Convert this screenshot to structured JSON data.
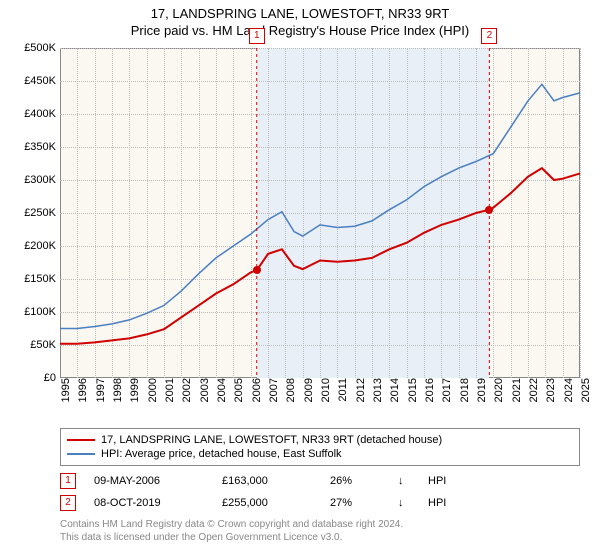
{
  "title_line1": "17, LANDSPRING LANE, LOWESTOFT, NR33 9RT",
  "title_line2": "Price paid vs. HM Land Registry's House Price Index (HPI)",
  "chart": {
    "type": "line",
    "background_color": "#fbf8f1",
    "shade_color": "#e8eff7",
    "grid_color": "#bbbbbb",
    "border_color": "#888888",
    "xlim": [
      1995,
      2025
    ],
    "ylim": [
      0,
      500000
    ],
    "ytick_step": 50000,
    "yticks": [
      "£0",
      "£50K",
      "£100K",
      "£150K",
      "£200K",
      "£250K",
      "£300K",
      "£350K",
      "£400K",
      "£450K",
      "£500K"
    ],
    "xticks": [
      "1995",
      "1996",
      "1997",
      "1998",
      "1999",
      "2000",
      "2001",
      "2002",
      "2003",
      "2004",
      "2005",
      "2006",
      "2007",
      "2008",
      "2009",
      "2010",
      "2011",
      "2012",
      "2013",
      "2014",
      "2015",
      "2016",
      "2017",
      "2018",
      "2019",
      "2020",
      "2021",
      "2022",
      "2023",
      "2024",
      "2025"
    ],
    "shade_start": 2006.35,
    "shade_end": 2019.77,
    "series": [
      {
        "name": "property",
        "color": "#d10000",
        "width": 2,
        "data": [
          [
            1995,
            52000
          ],
          [
            1996,
            52000
          ],
          [
            1997,
            54000
          ],
          [
            1998,
            57000
          ],
          [
            1999,
            60000
          ],
          [
            2000,
            66000
          ],
          [
            2001,
            74000
          ],
          [
            2002,
            92000
          ],
          [
            2003,
            110000
          ],
          [
            2004,
            128000
          ],
          [
            2005,
            142000
          ],
          [
            2006,
            160000
          ],
          [
            2006.35,
            163000
          ],
          [
            2007,
            188000
          ],
          [
            2007.8,
            195000
          ],
          [
            2008.5,
            170000
          ],
          [
            2009,
            165000
          ],
          [
            2010,
            178000
          ],
          [
            2011,
            176000
          ],
          [
            2012,
            178000
          ],
          [
            2013,
            182000
          ],
          [
            2014,
            195000
          ],
          [
            2015,
            205000
          ],
          [
            2016,
            220000
          ],
          [
            2017,
            232000
          ],
          [
            2018,
            240000
          ],
          [
            2019,
            250000
          ],
          [
            2019.77,
            255000
          ],
          [
            2020,
            258000
          ],
          [
            2021,
            280000
          ],
          [
            2022,
            305000
          ],
          [
            2022.8,
            318000
          ],
          [
            2023.5,
            300000
          ],
          [
            2024,
            302000
          ],
          [
            2025,
            310000
          ]
        ]
      },
      {
        "name": "hpi",
        "color": "#4a7fc1",
        "width": 1.5,
        "data": [
          [
            1995,
            75000
          ],
          [
            1996,
            75000
          ],
          [
            1997,
            78000
          ],
          [
            1998,
            82000
          ],
          [
            1999,
            88000
          ],
          [
            2000,
            98000
          ],
          [
            2001,
            110000
          ],
          [
            2002,
            132000
          ],
          [
            2003,
            158000
          ],
          [
            2004,
            182000
          ],
          [
            2005,
            200000
          ],
          [
            2006,
            218000
          ],
          [
            2007,
            240000
          ],
          [
            2007.8,
            252000
          ],
          [
            2008.5,
            222000
          ],
          [
            2009,
            215000
          ],
          [
            2010,
            232000
          ],
          [
            2011,
            228000
          ],
          [
            2012,
            230000
          ],
          [
            2013,
            238000
          ],
          [
            2014,
            255000
          ],
          [
            2015,
            270000
          ],
          [
            2016,
            290000
          ],
          [
            2017,
            305000
          ],
          [
            2018,
            318000
          ],
          [
            2019,
            328000
          ],
          [
            2020,
            340000
          ],
          [
            2021,
            380000
          ],
          [
            2022,
            420000
          ],
          [
            2022.8,
            445000
          ],
          [
            2023.5,
            420000
          ],
          [
            2024,
            425000
          ],
          [
            2025,
            432000
          ]
        ]
      }
    ],
    "sale_markers": [
      {
        "n": "1",
        "year": 2006.35,
        "value": 163000,
        "color": "#d10000"
      },
      {
        "n": "2",
        "year": 2019.77,
        "value": 255000,
        "color": "#d10000"
      }
    ]
  },
  "legend": {
    "items": [
      {
        "color": "#d10000",
        "label": "17, LANDSPRING LANE, LOWESTOFT, NR33 9RT (detached house)"
      },
      {
        "color": "#4a7fc1",
        "label": "HPI: Average price, detached house, East Suffolk"
      }
    ]
  },
  "sales": [
    {
      "n": "1",
      "color": "#d10000",
      "date": "09-MAY-2006",
      "price": "£163,000",
      "pct": "26%",
      "arrow": "↓",
      "vs": "HPI"
    },
    {
      "n": "2",
      "color": "#d10000",
      "date": "08-OCT-2019",
      "price": "£255,000",
      "pct": "27%",
      "arrow": "↓",
      "vs": "HPI"
    }
  ],
  "attribution_line1": "Contains HM Land Registry data © Crown copyright and database right 2024.",
  "attribution_line2": "This data is licensed under the Open Government Licence v3.0."
}
